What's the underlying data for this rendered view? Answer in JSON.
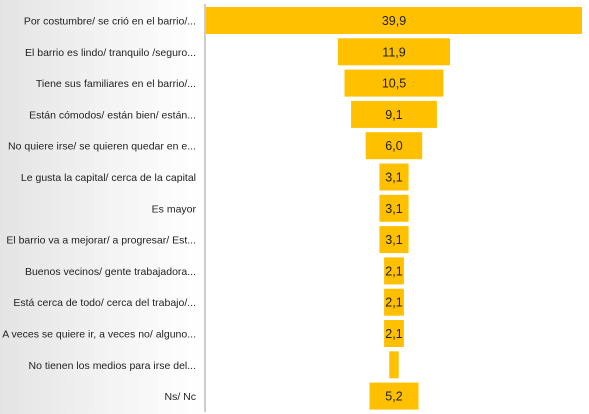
{
  "chart_data": {
    "type": "bar",
    "orientation": "horizontal-centered",
    "bar_color": "#FFC000",
    "categories": [
      "Por costumbre/ se crió en el barrio/...",
      "El barrio es lindo/ tranquilo /seguro...",
      "Tiene sus familiares en el barrio/...",
      "Están cómodos/ están bien/ están...",
      "No quiere irse/ se quieren quedar en e...",
      "Le gusta la capital/ cerca de la capital",
      "Es mayor",
      "El barrio va a mejorar/ a progresar/ Est...",
      "Buenos vecinos/ gente trabajadora...",
      "Está cerca de todo/ cerca del trabajo/...",
      "A veces se quiere ir, a veces no/ alguno...",
      "No tienen los medios para irse del...",
      "Ns/ Nc"
    ],
    "values": [
      39.9,
      11.9,
      10.5,
      9.1,
      6.0,
      3.1,
      3.1,
      3.1,
      2.1,
      2.1,
      2.1,
      1.0,
      5.2
    ],
    "value_labels": [
      "39,9",
      "11,9",
      "10,5",
      "9,1",
      "6,0",
      "3,1",
      "3,1",
      "3,1",
      "2,1",
      "2,1",
      "2,1",
      "",
      "5,2"
    ],
    "grid": false,
    "legend": "none"
  }
}
